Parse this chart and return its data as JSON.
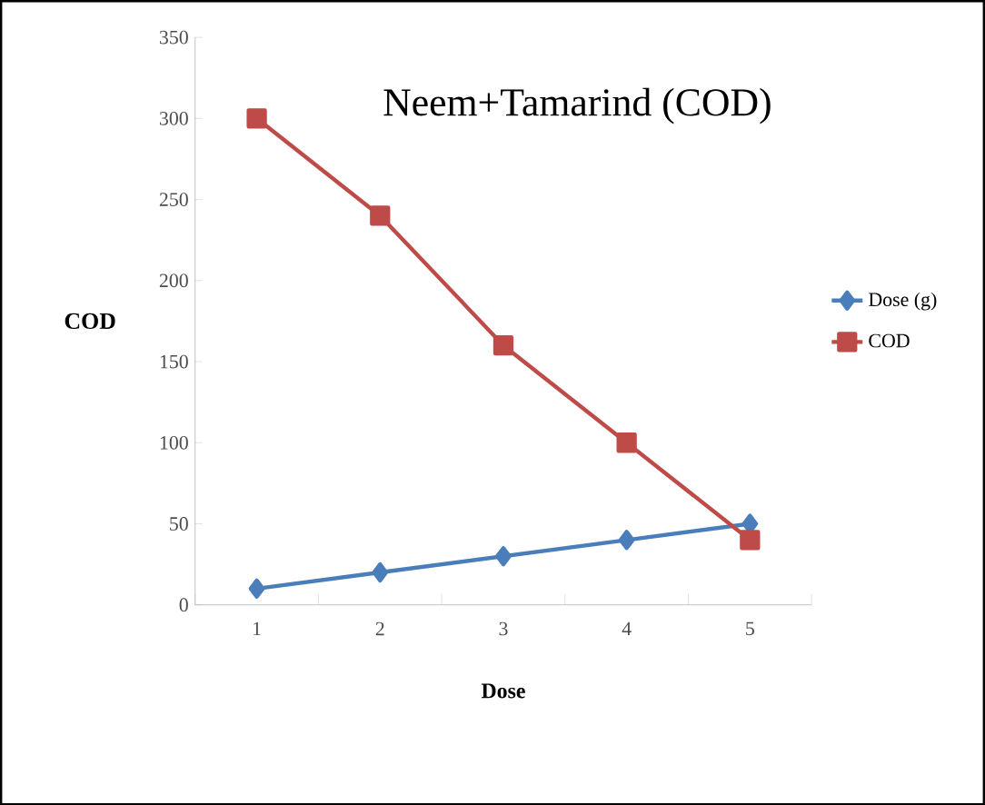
{
  "chart_data": {
    "type": "line",
    "title": "Neem+Tamarind (COD)",
    "xlabel": "Dose",
    "ylabel": "COD",
    "categories": [
      "1",
      "2",
      "3",
      "4",
      "5"
    ],
    "series": [
      {
        "name": "Dose (g)",
        "color": "#4a7ebb",
        "marker": "diamond",
        "values": [
          10,
          20,
          30,
          40,
          50
        ]
      },
      {
        "name": "COD",
        "color": "#be4b48",
        "marker": "square",
        "values": [
          300,
          240,
          160,
          100,
          40
        ]
      }
    ],
    "ylim": [
      0,
      350
    ],
    "yticks": [
      0,
      50,
      100,
      150,
      200,
      250,
      300,
      350
    ],
    "grid": false,
    "legend": "right"
  }
}
